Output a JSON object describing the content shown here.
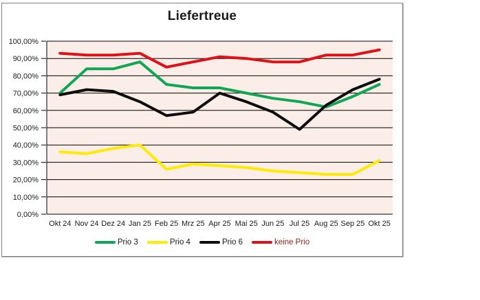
{
  "chart_data": {
    "type": "line",
    "title": "Liefertreue",
    "categories": [
      "Okt 24",
      "Nov 24",
      "Dez 24",
      "Jan 25",
      "Feb 25",
      "Mrz 25",
      "Apr 25",
      "Mai 25",
      "Jun 25",
      "Jul 25",
      "Aug 25",
      "Sep 25",
      "Okt 25"
    ],
    "series": [
      {
        "name": "Prio 3",
        "color": "#0fa655",
        "values": [
          70,
          84,
          84,
          88,
          75,
          73,
          73,
          70,
          67,
          65,
          62,
          68,
          75
        ]
      },
      {
        "name": "Prio 4",
        "color": "#ffeb00",
        "values": [
          36,
          35,
          38,
          40,
          26,
          29,
          28,
          27,
          25,
          24,
          23,
          23,
          31
        ]
      },
      {
        "name": "Prio 6",
        "color": "#0d0d0d",
        "values": [
          69,
          72,
          71,
          65,
          57,
          59,
          70,
          65,
          59,
          49,
          63,
          72,
          78
        ]
      },
      {
        "name": "keine Prio",
        "color": "#df1118",
        "label_color": "#8c1e14",
        "values": [
          93,
          92,
          92,
          93,
          85,
          88,
          91,
          90,
          88,
          88,
          92,
          92,
          95
        ]
      }
    ],
    "ylim": [
      0,
      100
    ],
    "ytick_step": 10,
    "ytick_labels": [
      "0,00%",
      "10,00%",
      "20,00%",
      "30,00%",
      "40,00%",
      "50,00%",
      "60,00%",
      "70,00%",
      "80,00%",
      "90,00%",
      "100,00%"
    ],
    "grid": "horizontal-black",
    "legend_position": "bottom",
    "plot_bg": "#fbede7",
    "axis_color": "#000000",
    "label_color": "#1a1a1a"
  }
}
